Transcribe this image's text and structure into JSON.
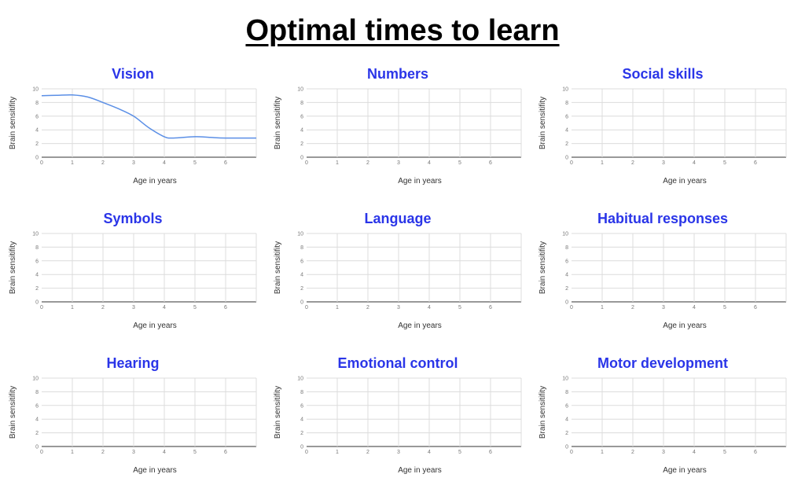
{
  "page": {
    "title": "Optimal times to learn"
  },
  "colors": {
    "title": "#2a35e8",
    "series": "#5b8fe6",
    "grid": "#dcdcdc"
  },
  "chart_data": [
    {
      "type": "line",
      "title": "Vision",
      "xlabel": "Age in years",
      "ylabel": "Brain sensitifity",
      "xlim": [
        0,
        7
      ],
      "ylim": [
        0,
        10
      ],
      "xticks": [
        0,
        1,
        2,
        3,
        4,
        5,
        6
      ],
      "yticks": [
        0,
        2,
        4,
        6,
        8,
        10
      ],
      "grid": true,
      "series": [
        {
          "x": [
            0,
            0.5,
            1,
            1.5,
            2,
            2.5,
            3,
            3.5,
            4,
            4.3,
            5,
            5.5,
            6,
            7
          ],
          "y": [
            9.0,
            9.05,
            9.1,
            8.8,
            8.0,
            7.1,
            6.0,
            4.3,
            3.0,
            2.8,
            3.0,
            2.9,
            2.8,
            2.8
          ]
        }
      ]
    },
    {
      "type": "line",
      "title": "Numbers",
      "xlabel": "Age in years",
      "ylabel": "Brain sensitifity",
      "xlim": [
        0,
        7
      ],
      "ylim": [
        0,
        10
      ],
      "xticks": [
        0,
        1,
        2,
        3,
        4,
        5,
        6
      ],
      "yticks": [
        0,
        2,
        4,
        6,
        8,
        10
      ],
      "grid": true,
      "series": []
    },
    {
      "type": "line",
      "title": "Social skills",
      "xlabel": "Age in years",
      "ylabel": "Brain sensitifity",
      "xlim": [
        0,
        7
      ],
      "ylim": [
        0,
        10
      ],
      "xticks": [
        0,
        1,
        2,
        3,
        4,
        5,
        6
      ],
      "yticks": [
        0,
        2,
        4,
        6,
        8,
        10
      ],
      "grid": true,
      "series": []
    },
    {
      "type": "line",
      "title": "Symbols",
      "xlabel": "Age in years",
      "ylabel": "Brain sensitifity",
      "xlim": [
        0,
        7
      ],
      "ylim": [
        0,
        10
      ],
      "xticks": [
        0,
        1,
        2,
        3,
        4,
        5,
        6
      ],
      "yticks": [
        0,
        2,
        4,
        6,
        8,
        10
      ],
      "grid": true,
      "series": []
    },
    {
      "type": "line",
      "title": "Language",
      "xlabel": "Age in years",
      "ylabel": "Brain sensitifity",
      "xlim": [
        0,
        7
      ],
      "ylim": [
        0,
        10
      ],
      "xticks": [
        0,
        1,
        2,
        3,
        4,
        5,
        6
      ],
      "yticks": [
        0,
        2,
        4,
        6,
        8,
        10
      ],
      "grid": true,
      "series": []
    },
    {
      "type": "line",
      "title": "Habitual responses",
      "xlabel": "Age in years",
      "ylabel": "Brain sensitifity",
      "xlim": [
        0,
        7
      ],
      "ylim": [
        0,
        10
      ],
      "xticks": [
        0,
        1,
        2,
        3,
        4,
        5,
        6
      ],
      "yticks": [
        0,
        2,
        4,
        6,
        8,
        10
      ],
      "grid": true,
      "series": []
    },
    {
      "type": "line",
      "title": "Hearing",
      "xlabel": "Age in years",
      "ylabel": "Brain sensitifity",
      "xlim": [
        0,
        7
      ],
      "ylim": [
        0,
        10
      ],
      "xticks": [
        0,
        1,
        2,
        3,
        4,
        5,
        6
      ],
      "yticks": [
        0,
        2,
        4,
        6,
        8,
        10
      ],
      "grid": true,
      "series": []
    },
    {
      "type": "line",
      "title": "Emotional control",
      "xlabel": "Age in years",
      "ylabel": "Brain sensitifity",
      "xlim": [
        0,
        7
      ],
      "ylim": [
        0,
        10
      ],
      "xticks": [
        0,
        1,
        2,
        3,
        4,
        5,
        6
      ],
      "yticks": [
        0,
        2,
        4,
        6,
        8,
        10
      ],
      "grid": true,
      "series": []
    },
    {
      "type": "line",
      "title": "Motor development",
      "xlabel": "Age in years",
      "ylabel": "Brain sensitifity",
      "xlim": [
        0,
        7
      ],
      "ylim": [
        0,
        10
      ],
      "xticks": [
        0,
        1,
        2,
        3,
        4,
        5,
        6
      ],
      "yticks": [
        0,
        2,
        4,
        6,
        8,
        10
      ],
      "grid": true,
      "series": []
    }
  ]
}
